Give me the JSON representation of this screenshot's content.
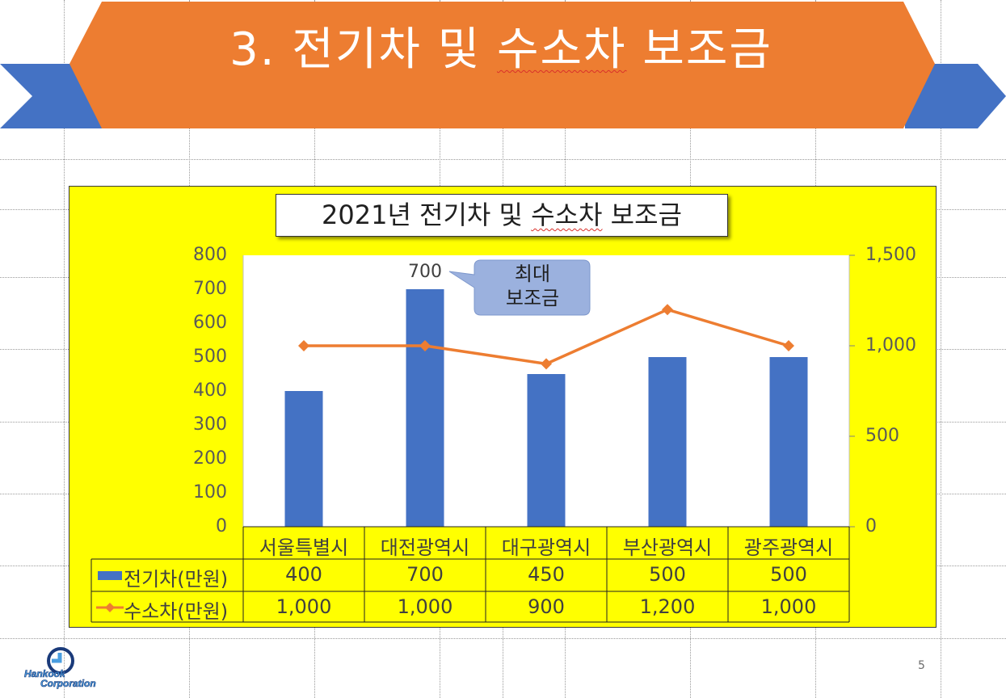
{
  "slide": {
    "title_prefix": "3. 전기차 및 ",
    "title_marked": "수소차",
    "title_suffix": " 보조금",
    "page_number": "5",
    "colors": {
      "banner": "#ed7d31",
      "ribbon": "#4472c4",
      "chart_background": "#ffff00"
    }
  },
  "logo": {
    "line1": "Hankook",
    "line2": "Corporation",
    "icon": "hankook-logo-icon"
  },
  "chart_data": {
    "type": "bar",
    "title_prefix": "2021년 전기차 및 ",
    "title_marked": "수소차",
    "title_suffix": " 보조금",
    "categories": [
      "서울특별시",
      "대전광역시",
      "대구광역시",
      "부산광역시",
      "광주광역시"
    ],
    "series": [
      {
        "name": "전기차(만원)",
        "type": "bar",
        "axis": "left",
        "color": "#4472c4",
        "values": [
          400,
          700,
          450,
          500,
          500
        ],
        "display": [
          "400",
          "700",
          "450",
          "500",
          "500"
        ]
      },
      {
        "name": "수소차(만원)",
        "type": "line",
        "axis": "right",
        "color": "#ed7d31",
        "marker": "diamond",
        "values": [
          1000,
          1000,
          900,
          1200,
          1000
        ],
        "display": [
          "1,000",
          "1,000",
          "900",
          "1,200",
          "1,000"
        ]
      }
    ],
    "y_left": {
      "ylim": [
        0,
        800
      ],
      "ticks": [
        "0",
        "100",
        "200",
        "300",
        "400",
        "500",
        "600",
        "700",
        "800"
      ]
    },
    "y_right": {
      "ylim": [
        0,
        1500
      ],
      "ticks": [
        "0",
        "500",
        "1,000",
        "1,500"
      ]
    },
    "data_label": {
      "series": 0,
      "index": 1,
      "text": "700"
    },
    "callout": {
      "text_line1": "최대",
      "text_line2": "보조금"
    },
    "data_table": true
  }
}
